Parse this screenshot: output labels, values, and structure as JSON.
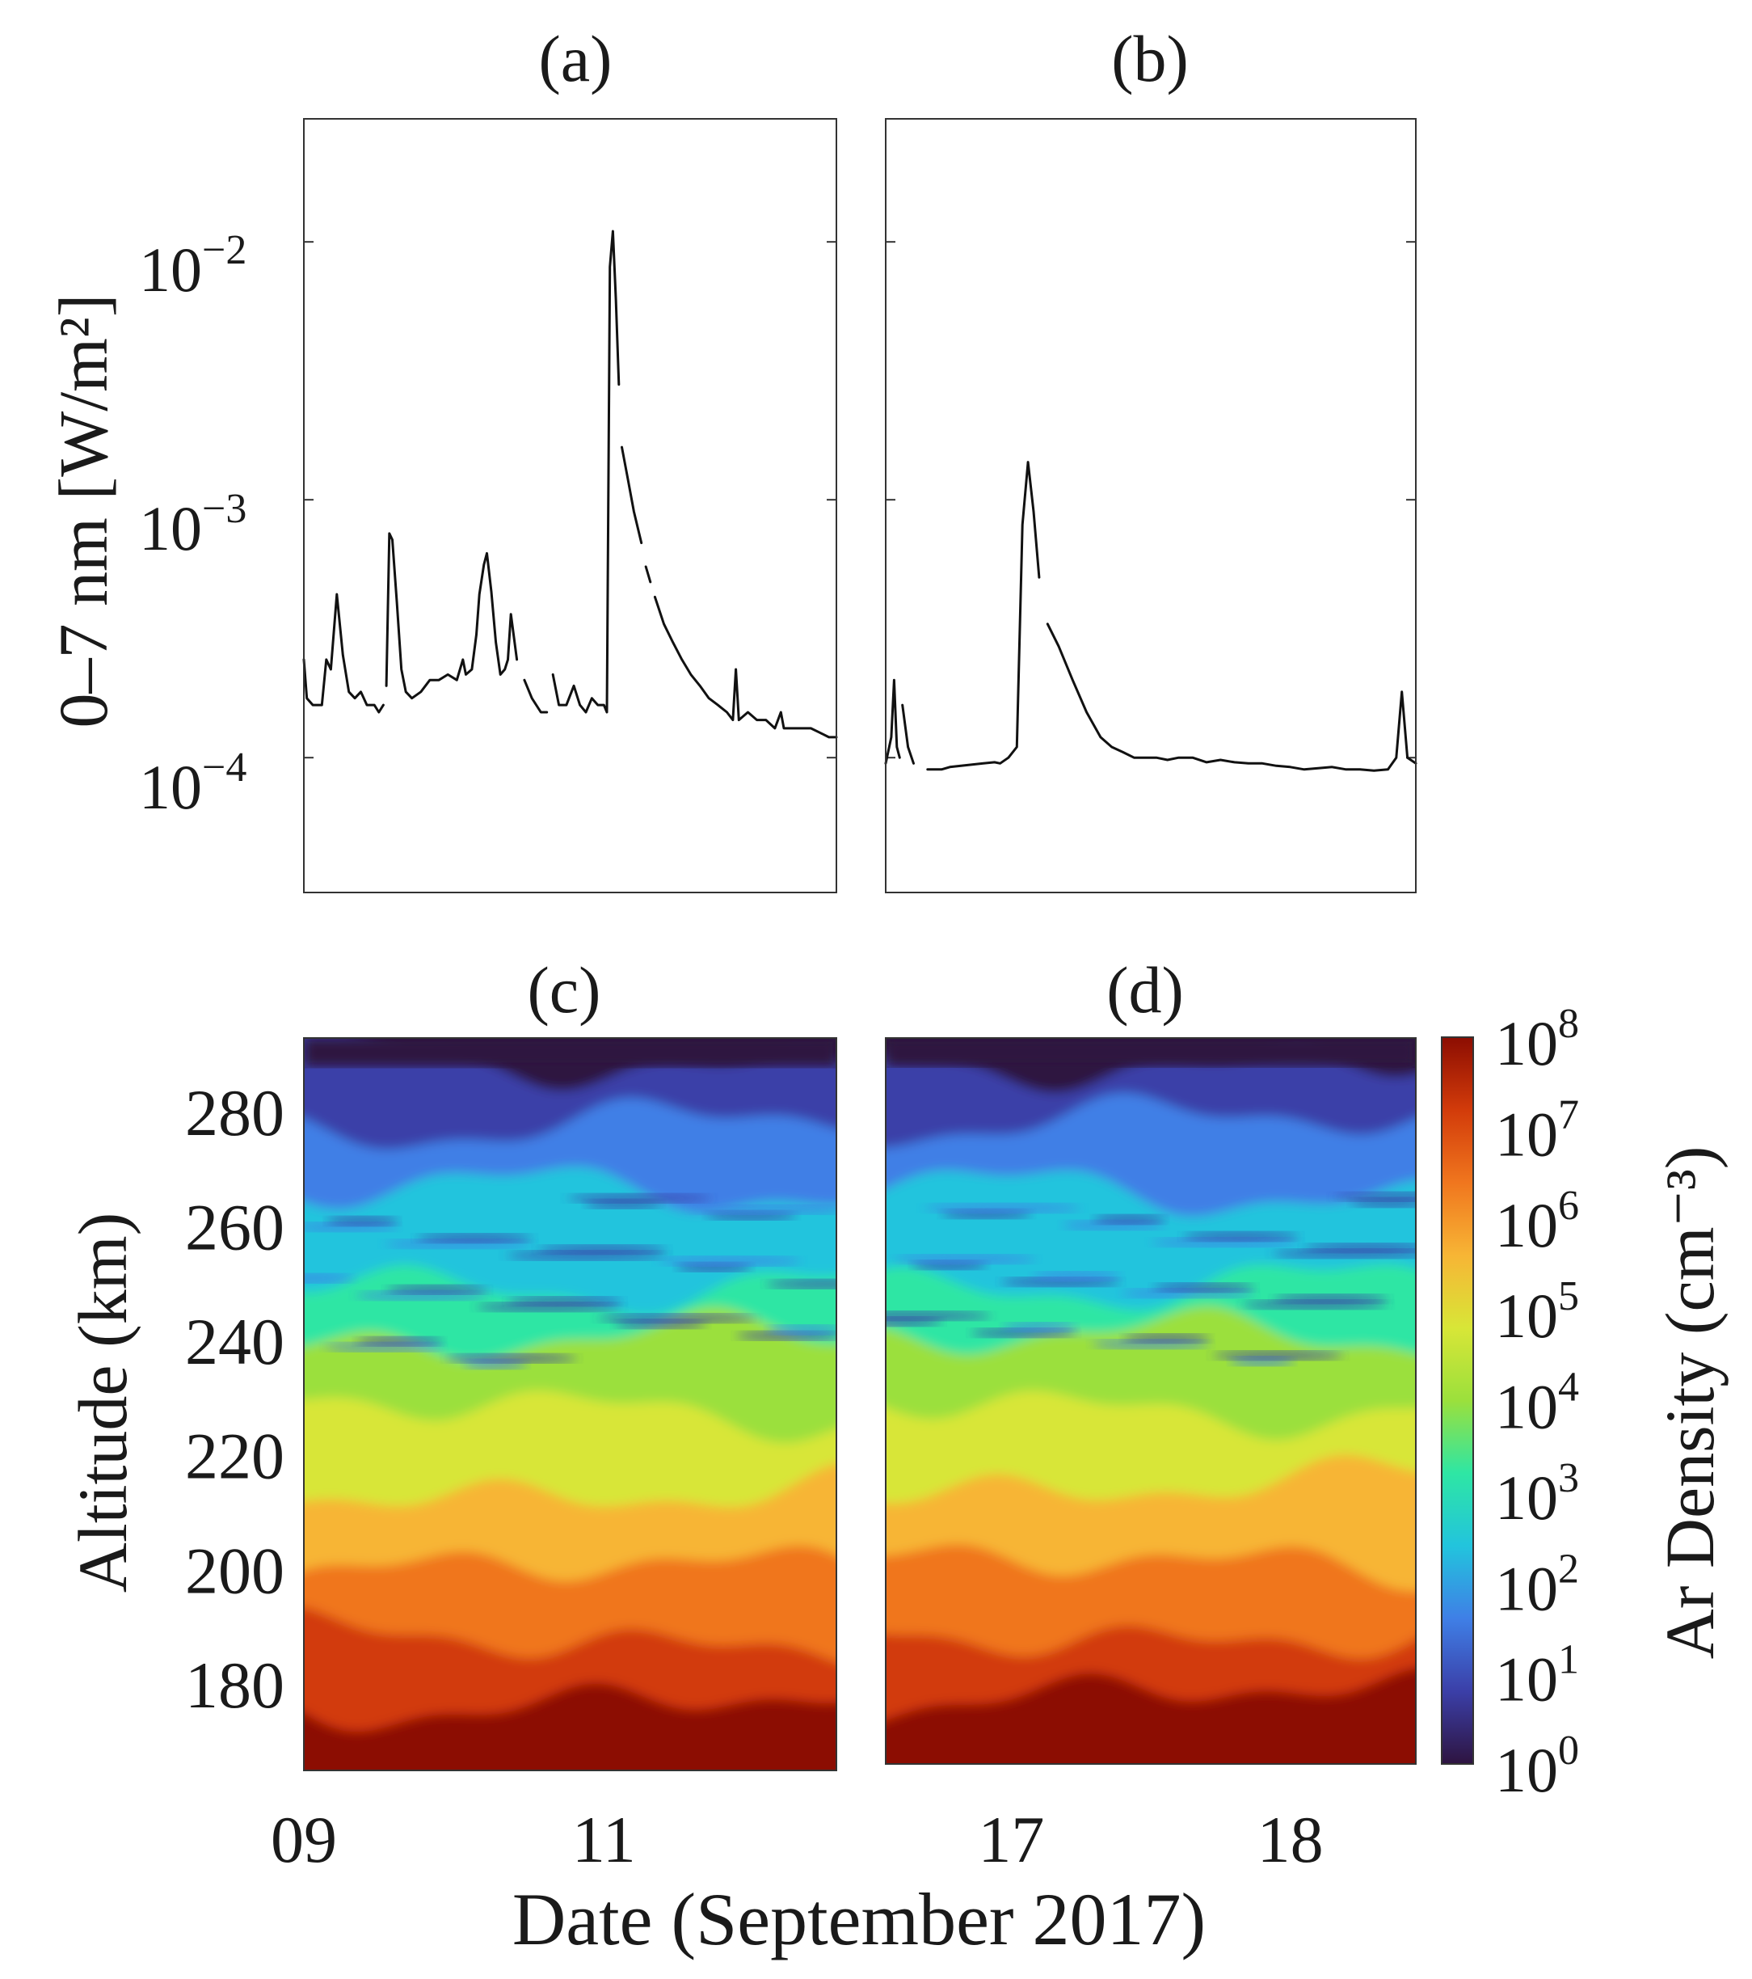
{
  "colors": {
    "background": "#ffffff",
    "trace": "#111111",
    "colormap": [
      "#2e1440",
      "#3b3fa8",
      "#3f7fe6",
      "#22c4dd",
      "#2ee6a4",
      "#9be03c",
      "#d8e637",
      "#f7b535",
      "#f0761e",
      "#d23b0a",
      "#8c0d02"
    ]
  },
  "xlabel": "Date (September 2017)",
  "chart_data": [
    {
      "panel": "(a)",
      "type": "line",
      "title": "(a)",
      "ylabel": "0–7 nm [W/m²]",
      "yscale": "log",
      "ylim": [
        3e-05,
        0.03
      ],
      "yticks": [
        0.0001,
        0.001,
        0.01
      ],
      "yticklabels": [
        {
          "base": "10",
          "exp": "−4"
        },
        {
          "base": "10",
          "exp": "−3"
        },
        {
          "base": "10",
          "exp": "−2"
        }
      ],
      "xlim": [
        9.0,
        12.55
      ],
      "segments": [
        [
          [
            9.0,
            0.00024
          ],
          [
            9.02,
            0.00017
          ],
          [
            9.06,
            0.00016
          ],
          [
            9.12,
            0.00016
          ],
          [
            9.15,
            0.00024
          ],
          [
            9.18,
            0.00022
          ],
          [
            9.22,
            0.00043
          ],
          [
            9.26,
            0.00025
          ],
          [
            9.3,
            0.00018
          ],
          [
            9.34,
            0.00017
          ],
          [
            9.38,
            0.00018
          ],
          [
            9.42,
            0.00016
          ],
          [
            9.47,
            0.00016
          ],
          [
            9.5,
            0.00015
          ],
          [
            9.53,
            0.00016
          ]
        ],
        [
          [
            9.55,
            0.00019
          ],
          [
            9.57,
            0.00074
          ],
          [
            9.59,
            0.0007
          ],
          [
            9.62,
            0.0004
          ],
          [
            9.65,
            0.00022
          ],
          [
            9.68,
            0.00018
          ],
          [
            9.72,
            0.00017
          ],
          [
            9.78,
            0.00018
          ],
          [
            9.84,
            0.0002
          ],
          [
            9.9,
            0.0002
          ],
          [
            9.96,
            0.00021
          ],
          [
            10.02,
            0.0002
          ],
          [
            10.06,
            0.00024
          ],
          [
            10.08,
            0.00021
          ],
          [
            10.12,
            0.00022
          ],
          [
            10.15,
            0.0003
          ],
          [
            10.17,
            0.00043
          ],
          [
            10.2,
            0.00056
          ],
          [
            10.22,
            0.00062
          ],
          [
            10.25,
            0.00044
          ],
          [
            10.28,
            0.00028
          ],
          [
            10.31,
            0.00021
          ],
          [
            10.34,
            0.00022
          ],
          [
            10.36,
            0.00024
          ],
          [
            10.38,
            0.00036
          ],
          [
            10.42,
            0.00024
          ]
        ],
        [
          [
            10.47,
            0.0002
          ],
          [
            10.52,
            0.00017
          ],
          [
            10.58,
            0.00015
          ],
          [
            10.62,
            0.00015
          ]
        ],
        [
          [
            10.66,
            0.00021
          ],
          [
            10.7,
            0.00016
          ],
          [
            10.75,
            0.00016
          ],
          [
            10.8,
            0.00019
          ],
          [
            10.84,
            0.00016
          ],
          [
            10.88,
            0.00015
          ],
          [
            10.92,
            0.00017
          ],
          [
            10.96,
            0.00016
          ],
          [
            11.0,
            0.00016
          ],
          [
            11.02,
            0.00015
          ],
          [
            11.04,
            0.008
          ],
          [
            11.06,
            0.011
          ],
          [
            11.08,
            0.006
          ],
          [
            11.1,
            0.0028
          ]
        ],
        [
          [
            11.12,
            0.0016
          ],
          [
            11.16,
            0.0012
          ],
          [
            11.2,
            0.0009
          ],
          [
            11.25,
            0.00068
          ]
        ],
        [
          [
            11.28,
            0.00055
          ],
          [
            11.31,
            0.00048
          ]
        ],
        [
          [
            11.34,
            0.00042
          ],
          [
            11.4,
            0.00033
          ],
          [
            11.46,
            0.00028
          ],
          [
            11.52,
            0.00024
          ],
          [
            11.58,
            0.00021
          ],
          [
            11.64,
            0.00019
          ],
          [
            11.7,
            0.00017
          ],
          [
            11.76,
            0.00016
          ],
          [
            11.82,
            0.00015
          ],
          [
            11.86,
            0.00014
          ],
          [
            11.88,
            0.00022
          ],
          [
            11.9,
            0.00014
          ],
          [
            11.96,
            0.00015
          ],
          [
            12.02,
            0.00014
          ],
          [
            12.08,
            0.00014
          ],
          [
            12.14,
            0.00013
          ],
          [
            12.18,
            0.00015
          ],
          [
            12.2,
            0.00013
          ],
          [
            12.26,
            0.00013
          ],
          [
            12.32,
            0.00013
          ],
          [
            12.38,
            0.00013
          ],
          [
            12.44,
            0.000125
          ],
          [
            12.5,
            0.00012
          ],
          [
            12.55,
            0.00012
          ]
        ]
      ]
    },
    {
      "panel": "(b)",
      "type": "line",
      "title": "(b)",
      "yscale": "log",
      "ylim": [
        3e-05,
        0.03
      ],
      "yticks": [
        0.0001,
        0.001,
        0.01
      ],
      "xlim": [
        16.55,
        18.45
      ],
      "segments": [
        [
          [
            16.55,
            9.5e-05
          ],
          [
            16.57,
            0.00012
          ],
          [
            16.58,
            0.0002
          ],
          [
            16.59,
            0.00011
          ],
          [
            16.6,
            0.0001
          ]
        ],
        [
          [
            16.61,
            0.00016
          ],
          [
            16.63,
            0.00011
          ],
          [
            16.65,
            9.5e-05
          ]
        ],
        [
          [
            16.7,
            9e-05
          ],
          [
            16.75,
            9e-05
          ],
          [
            16.78,
            9.2e-05
          ],
          [
            16.82,
            9.3e-05
          ],
          [
            16.86,
            9.4e-05
          ],
          [
            16.9,
            9.5e-05
          ],
          [
            16.94,
            9.6e-05
          ],
          [
            16.96,
            9.5e-05
          ],
          [
            16.99,
            0.0001
          ],
          [
            17.02,
            0.00011
          ],
          [
            17.04,
            0.0008
          ],
          [
            17.06,
            0.0014
          ],
          [
            17.08,
            0.0009
          ],
          [
            17.1,
            0.0005
          ]
        ],
        [
          [
            17.13,
            0.00033
          ],
          [
            17.17,
            0.00027
          ],
          [
            17.22,
            0.0002
          ],
          [
            17.27,
            0.00015
          ],
          [
            17.32,
            0.00012
          ],
          [
            17.36,
            0.00011
          ],
          [
            17.4,
            0.000105
          ],
          [
            17.44,
            0.0001
          ],
          [
            17.48,
            0.0001
          ],
          [
            17.52,
            0.0001
          ],
          [
            17.56,
            9.8e-05
          ],
          [
            17.6,
            0.0001
          ],
          [
            17.65,
            0.0001
          ],
          [
            17.7,
            9.6e-05
          ],
          [
            17.75,
            9.8e-05
          ],
          [
            17.8,
            9.6e-05
          ],
          [
            17.85,
            9.5e-05
          ],
          [
            17.9,
            9.5e-05
          ],
          [
            17.95,
            9.3e-05
          ],
          [
            18.0,
            9.2e-05
          ],
          [
            18.05,
            9e-05
          ],
          [
            18.1,
            9.1e-05
          ],
          [
            18.15,
            9.2e-05
          ],
          [
            18.2,
            9e-05
          ],
          [
            18.25,
            9e-05
          ],
          [
            18.3,
            8.9e-05
          ],
          [
            18.35,
            9e-05
          ],
          [
            18.38,
            0.0001
          ],
          [
            18.4,
            0.00018
          ],
          [
            18.42,
            0.0001
          ],
          [
            18.45,
            9.5e-05
          ]
        ]
      ]
    },
    {
      "panel": "(c)",
      "type": "heatmap",
      "title": "(c)",
      "ylabel": "Altitude (km)",
      "ylim": [
        165,
        293
      ],
      "yticks": [
        180,
        200,
        220,
        240,
        260,
        280
      ],
      "xlim": [
        9.0,
        12.55
      ],
      "xticks": [
        9.0,
        11.0
      ],
      "xticklabels": [
        "09",
        "11"
      ]
    },
    {
      "panel": "(d)",
      "type": "heatmap",
      "title": "(d)",
      "ylim": [
        165,
        293
      ],
      "xlim": [
        16.55,
        18.45
      ],
      "xticks": [
        17.0,
        18.0
      ],
      "xticklabels": [
        "17",
        "18"
      ]
    },
    {
      "type": "colorbar",
      "label": "Ar Density (cm⁻³)",
      "scale": "log",
      "range": [
        1,
        100000000
      ],
      "ticklabels": [
        {
          "base": "10",
          "exp": "0"
        },
        {
          "base": "10",
          "exp": "1"
        },
        {
          "base": "10",
          "exp": "2"
        },
        {
          "base": "10",
          "exp": "3"
        },
        {
          "base": "10",
          "exp": "4"
        },
        {
          "base": "10",
          "exp": "5"
        },
        {
          "base": "10",
          "exp": "6"
        },
        {
          "base": "10",
          "exp": "7"
        },
        {
          "base": "10",
          "exp": "8"
        }
      ]
    }
  ]
}
